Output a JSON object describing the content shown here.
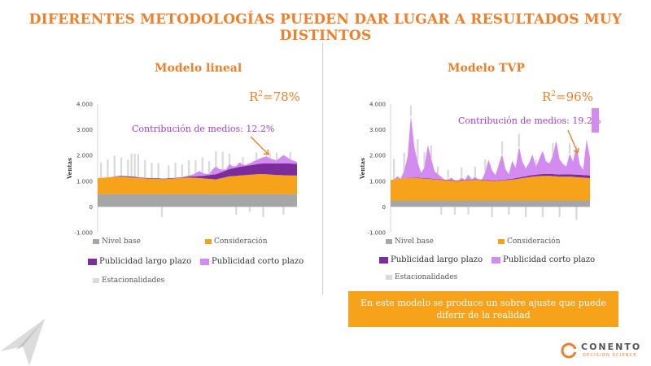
{
  "slide": {
    "title": "DIFERENTES METODOLOGÍAS PUEDEN DAR LUGAR A RESULTADOS MUY DISTINTOS",
    "callout": "En este modelo se produce un sobre ajuste que puede diferir de la realidad",
    "logo": {
      "name": "CONENTO",
      "tagline": "DECISION SCIENCE"
    }
  },
  "colors": {
    "accent": "#F07F2A",
    "nivel_base": "#A6A6A6",
    "consideracion": "#F7A21B",
    "publicidad_largo": "#7B2D9C",
    "publicidad_corto": "#D48BF0",
    "estacionalidades": "#DADADA",
    "callout_bg": "#F7A21B"
  },
  "chart_data": [
    {
      "type": "area",
      "panel_title": "Modelo lineal",
      "r2_prefix": "R",
      "r2_sup": "2",
      "r2_value": "=78%",
      "annotation": "Contribución de medios: 12.2%",
      "ylabel": "Ventas",
      "yticks": [
        "4.000",
        "3.000",
        "2.000",
        "1.000",
        "0",
        "-1.000"
      ],
      "ylim": [
        -1000,
        4000
      ],
      "n_points": 60,
      "legend": [
        "Nivel base",
        "Consideración",
        "Publicidad largo plazo",
        "Publicidad corto plazo",
        "Estacionalidades"
      ],
      "series": {
        "nivel_base": [
          500,
          500,
          500,
          500,
          500,
          500,
          500,
          500,
          500,
          500,
          500,
          500,
          500,
          500,
          500,
          500,
          500,
          500,
          500,
          500,
          500,
          500,
          500,
          500,
          500,
          500,
          500,
          500,
          500,
          500,
          500,
          500,
          500,
          500,
          500,
          500,
          500,
          500,
          500,
          500,
          500,
          500,
          500,
          500,
          500,
          500,
          500,
          500,
          500,
          500,
          500,
          500,
          500,
          500,
          500,
          500,
          500,
          500,
          500,
          500
        ],
        "consideracion": [
          620,
          630,
          640,
          650,
          660,
          670,
          680,
          680,
          670,
          660,
          650,
          640,
          630,
          620,
          610,
          600,
          600,
          590,
          590,
          580,
          580,
          590,
          600,
          610,
          620,
          630,
          640,
          640,
          640,
          630,
          620,
          610,
          600,
          590,
          580,
          570,
          600,
          630,
          660,
          690,
          700,
          710,
          720,
          730,
          740,
          750,
          760,
          770,
          780,
          780,
          770,
          760,
          750,
          740,
          740,
          730,
          730,
          720,
          720,
          720
        ],
        "publicidad_largo": [
          0,
          0,
          0,
          0,
          0,
          10,
          20,
          30,
          30,
          30,
          30,
          30,
          20,
          20,
          20,
          20,
          20,
          20,
          20,
          20,
          20,
          20,
          20,
          20,
          20,
          20,
          30,
          40,
          50,
          60,
          80,
          100,
          120,
          150,
          180,
          200,
          220,
          240,
          260,
          280,
          300,
          320,
          340,
          350,
          360,
          370,
          380,
          390,
          400,
          410,
          420,
          430,
          440,
          450,
          460,
          470,
          470,
          470,
          460,
          450
        ],
        "publicidad_corto": [
          0,
          0,
          0,
          0,
          0,
          10,
          0,
          0,
          0,
          0,
          0,
          0,
          0,
          0,
          0,
          0,
          0,
          0,
          0,
          0,
          0,
          0,
          0,
          0,
          0,
          0,
          20,
          40,
          60,
          120,
          200,
          120,
          60,
          40,
          200,
          300,
          150,
          80,
          40,
          200,
          80,
          60,
          180,
          60,
          40,
          80,
          120,
          160,
          200,
          240,
          280,
          200,
          160,
          120,
          220,
          320,
          240,
          160,
          120,
          80
        ],
        "estacionalidades": [
          0,
          600,
          0,
          700,
          0,
          800,
          0,
          700,
          0,
          650,
          900,
          900,
          900,
          0,
          700,
          0,
          600,
          0,
          600,
          -400,
          0,
          500,
          0,
          600,
          0,
          500,
          0,
          600,
          0,
          500,
          0,
          600,
          0,
          500,
          0,
          600,
          0,
          700,
          0,
          400,
          0,
          -300,
          0,
          300,
          0,
          -200,
          0,
          300,
          0,
          -400,
          0,
          200,
          0,
          300,
          0,
          -300,
          0,
          300,
          0,
          0
        ]
      }
    },
    {
      "type": "area",
      "panel_title": "Modelo TVP",
      "r2_prefix": "R",
      "r2_sup": "2",
      "r2_value": "=96%",
      "annotation": "Contribución de medios: 19.2%",
      "ylabel": "Ventas",
      "yticks": [
        "4.000",
        "3.000",
        "2.000",
        "1.000",
        "0",
        "-1.000"
      ],
      "ylim": [
        -1000,
        4000
      ],
      "n_points": 60,
      "legend": [
        "Nivel base",
        "Consideración",
        "Publicidad largo plazo",
        "Publicidad corto plazo",
        "Estacionalidades"
      ],
      "series": {
        "nivel_base": [
          250,
          250,
          250,
          250,
          250,
          250,
          250,
          250,
          250,
          250,
          250,
          250,
          250,
          250,
          250,
          250,
          250,
          250,
          250,
          250,
          250,
          250,
          250,
          250,
          250,
          250,
          250,
          250,
          250,
          250,
          250,
          250,
          250,
          250,
          250,
          250,
          250,
          250,
          250,
          250,
          250,
          250,
          250,
          250,
          250,
          250,
          250,
          250,
          250,
          250,
          250,
          250,
          250,
          250,
          250,
          250,
          250,
          250,
          250,
          250
        ],
        "consideracion": [
          800,
          820,
          840,
          850,
          860,
          870,
          880,
          880,
          870,
          860,
          850,
          840,
          830,
          820,
          810,
          800,
          790,
          780,
          770,
          760,
          760,
          770,
          780,
          790,
          800,
          800,
          800,
          790,
          780,
          770,
          760,
          760,
          770,
          780,
          790,
          800,
          810,
          830,
          850,
          870,
          890,
          910,
          930,
          940,
          950,
          960,
          960,
          960,
          950,
          940,
          930,
          930,
          930,
          930,
          920,
          910,
          900,
          890,
          880,
          870
        ],
        "publicidad_largo": [
          0,
          0,
          0,
          0,
          0,
          10,
          10,
          20,
          20,
          20,
          20,
          20,
          20,
          20,
          20,
          20,
          20,
          20,
          20,
          20,
          20,
          20,
          20,
          20,
          20,
          20,
          20,
          20,
          20,
          20,
          20,
          20,
          20,
          20,
          20,
          30,
          30,
          40,
          40,
          50,
          50,
          60,
          60,
          60,
          70,
          70,
          70,
          80,
          80,
          80,
          80,
          90,
          90,
          90,
          90,
          100,
          100,
          100,
          100,
          100
        ],
        "publicidad_corto": [
          0,
          0,
          100,
          0,
          300,
          800,
          2400,
          1200,
          600,
          200,
          400,
          1300,
          800,
          300,
          200,
          100,
          0,
          0,
          100,
          0,
          0,
          100,
          0,
          200,
          0,
          100,
          0,
          0,
          300,
          800,
          400,
          200,
          600,
          1000,
          400,
          200,
          700,
          400,
          1200,
          600,
          300,
          500,
          800,
          300,
          600,
          900,
          500,
          400,
          700,
          1300,
          600,
          400,
          300,
          800,
          500,
          1100,
          400,
          200,
          1400,
          700
        ],
        "estacionalidades": [
          0,
          800,
          0,
          0,
          700,
          0,
          400,
          0,
          900,
          0,
          600,
          0,
          500,
          0,
          300,
          -300,
          0,
          400,
          0,
          -300,
          0,
          400,
          0,
          -300,
          0,
          400,
          0,
          0,
          500,
          0,
          -400,
          0,
          0,
          500,
          0,
          -300,
          0,
          0,
          500,
          0,
          -400,
          0,
          0,
          300,
          0,
          -400,
          0,
          0,
          500,
          0,
          -400,
          0,
          0,
          400,
          0,
          -500,
          0,
          0,
          0,
          0
        ]
      }
    }
  ]
}
